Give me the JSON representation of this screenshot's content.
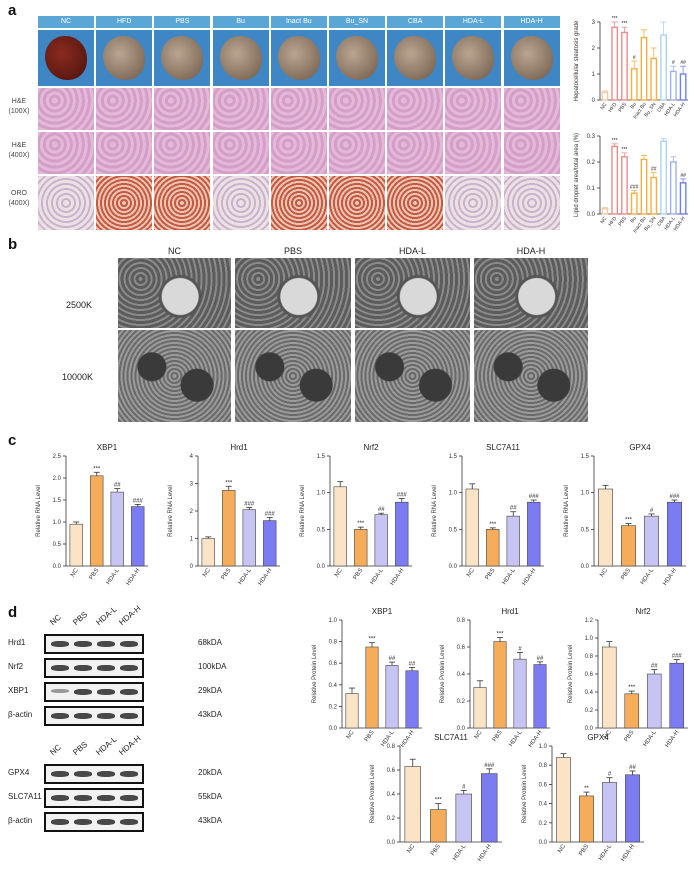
{
  "panel_letters": {
    "a": "a",
    "b": "b",
    "c": "c",
    "d": "d"
  },
  "panel_a": {
    "groups": [
      "NC",
      "HFD",
      "PBS",
      "Bu",
      "Inact Bu",
      "Bu_SN",
      "CBA",
      "HDA-L",
      "HDA-H"
    ],
    "row_labels": {
      "he100_1": "H&E",
      "he100_2": "(100X)",
      "he400_1": "H&E",
      "he400_2": "(400X)",
      "oro_1": "ORO",
      "oro_2": "(400X)"
    },
    "colors": {
      "header": "#5aa7d6",
      "he": "#d9a6cc",
      "oro": "#e8c9b8"
    }
  },
  "panel_b": {
    "columns": [
      "NC",
      "PBS",
      "HDA-L",
      "HDA-H"
    ],
    "rows": [
      "2500K",
      "10000K"
    ]
  },
  "panel_d_blots": {
    "top_headers": [
      "NC",
      "PBS",
      "HDA-L",
      "HDA-H"
    ],
    "top_rows": [
      {
        "name": "Hrd1",
        "kda": "68kDA"
      },
      {
        "name": "Nrf2",
        "kda": "100kDA"
      },
      {
        "name": "XBP1",
        "kda": "29kDA"
      },
      {
        "name": "β-actin",
        "kda": "43kDA"
      }
    ],
    "bottom_headers": [
      "NC",
      "PBS",
      "HDA-L",
      "HDA-H"
    ],
    "bottom_rows": [
      {
        "name": "GPX4",
        "kda": "20kDA"
      },
      {
        "name": "SLC7A11",
        "kda": "55kDA"
      },
      {
        "name": "β-actin",
        "kda": "43kDA"
      }
    ]
  },
  "chart_data": [
    {
      "id": "a_steatosis",
      "type": "bar",
      "ylabel": "Hepatocellular steatosis grade",
      "categories": [
        "NC",
        "HFD",
        "PBS",
        "Bu",
        "Inact Bu",
        "Bu_SN",
        "CBA",
        "HDA-L",
        "HDA-H"
      ],
      "values": [
        0.3,
        2.8,
        2.6,
        1.2,
        2.4,
        1.6,
        2.5,
        1.1,
        1.0
      ],
      "errors": [
        0.05,
        0.2,
        0.2,
        0.3,
        0.3,
        0.4,
        0.5,
        0.2,
        0.3
      ],
      "annotations": [
        "",
        "***",
        "***",
        "#",
        "",
        "",
        "",
        "#",
        "##"
      ],
      "ylim": [
        0,
        3
      ],
      "yticks": [
        0,
        1,
        2,
        3
      ],
      "colors": [
        "#f3c7a6",
        "#f08a8a",
        "#f08a8a",
        "#f5b041",
        "#f5b041",
        "#f5b041",
        "#aad4ef",
        "#9fb0f0",
        "#6f7ff2"
      ]
    },
    {
      "id": "a_lipid",
      "type": "bar",
      "ylabel": "Lipid droplet area/total area (%)",
      "categories": [
        "NC",
        "HFD",
        "PBS",
        "Bu",
        "Inact Bu",
        "Bu_SN",
        "CBA",
        "HDA-L",
        "HDA-H"
      ],
      "values": [
        0.02,
        0.26,
        0.22,
        0.08,
        0.21,
        0.14,
        0.28,
        0.2,
        0.12
      ],
      "errors": [
        0.005,
        0.01,
        0.015,
        0.01,
        0.015,
        0.02,
        0.01,
        0.02,
        0.015
      ],
      "annotations": [
        "",
        "***",
        "***",
        "###",
        "",
        "##",
        "",
        "",
        "##"
      ],
      "ylim": [
        0,
        0.3
      ],
      "yticks": [
        0.0,
        0.1,
        0.2,
        0.3
      ],
      "colors": [
        "#f3c7a6",
        "#f08a8a",
        "#f08a8a",
        "#f5b041",
        "#f5b041",
        "#f5b041",
        "#aad4ef",
        "#9fb0f0",
        "#6f7ff2"
      ]
    },
    {
      "id": "c_xbp1",
      "type": "bar",
      "title": "XBP1",
      "ylabel": "Relative RNA Level",
      "categories": [
        "NC",
        "PBS",
        "HDA-L",
        "HDA-H"
      ],
      "values": [
        0.95,
        2.05,
        1.68,
        1.35
      ],
      "errors": [
        0.05,
        0.08,
        0.08,
        0.05
      ],
      "annotations": [
        "",
        "***",
        "##",
        "###"
      ],
      "ylim": [
        0,
        2.5
      ],
      "yticks": [
        0.0,
        0.5,
        1.0,
        1.5,
        2.0,
        2.5
      ]
    },
    {
      "id": "c_hrd1",
      "type": "bar",
      "title": "Hrd1",
      "ylabel": "Relative RNA Level",
      "categories": [
        "NC",
        "PBS",
        "HDA-L",
        "HDA-H"
      ],
      "values": [
        1.0,
        2.75,
        2.05,
        1.65
      ],
      "errors": [
        0.06,
        0.15,
        0.08,
        0.12
      ],
      "annotations": [
        "",
        "***",
        "###",
        "###"
      ],
      "ylim": [
        0,
        4
      ],
      "yticks": [
        0,
        1,
        2,
        3,
        4
      ]
    },
    {
      "id": "c_nrf2",
      "type": "bar",
      "title": "Nrf2",
      "ylabel": "Relative RNA Level",
      "categories": [
        "NC",
        "PBS",
        "HDA-L",
        "HDA-H"
      ],
      "values": [
        1.08,
        0.5,
        0.7,
        0.87
      ],
      "errors": [
        0.07,
        0.03,
        0.02,
        0.05
      ],
      "annotations": [
        "",
        "***",
        "##",
        "###"
      ],
      "ylim": [
        0,
        1.5
      ],
      "yticks": [
        0.0,
        0.5,
        1.0,
        1.5
      ]
    },
    {
      "id": "c_slc7a11",
      "type": "bar",
      "title": "SLC7A11",
      "ylabel": "Relative RNA Level",
      "categories": [
        "NC",
        "PBS",
        "HDA-L",
        "HDA-H"
      ],
      "values": [
        1.05,
        0.5,
        0.68,
        0.87
      ],
      "errors": [
        0.07,
        0.02,
        0.06,
        0.03
      ],
      "annotations": [
        "",
        "***",
        "##",
        "###"
      ],
      "ylim": [
        0,
        1.5
      ],
      "yticks": [
        0.0,
        0.5,
        1.0,
        1.5
      ]
    },
    {
      "id": "c_gpx4",
      "type": "bar",
      "title": "GPX4",
      "ylabel": "Relative RNA Level",
      "categories": [
        "NC",
        "PBS",
        "HDA-L",
        "HDA-H"
      ],
      "values": [
        1.05,
        0.55,
        0.68,
        0.87
      ],
      "errors": [
        0.05,
        0.03,
        0.03,
        0.03
      ],
      "annotations": [
        "",
        "***",
        "#",
        "###"
      ],
      "ylim": [
        0,
        1.5
      ],
      "yticks": [
        0.0,
        0.5,
        1.0,
        1.5
      ]
    },
    {
      "id": "d_xbp1",
      "type": "bar",
      "title": "XBP1",
      "ylabel": "Relative Protein Level",
      "categories": [
        "NC",
        "PBS",
        "HDA-L",
        "HDA-H"
      ],
      "values": [
        0.32,
        0.75,
        0.58,
        0.53
      ],
      "errors": [
        0.05,
        0.04,
        0.03,
        0.03
      ],
      "annotations": [
        "",
        "***",
        "##",
        "##"
      ],
      "ylim": [
        0,
        1.0
      ],
      "yticks": [
        0.0,
        0.2,
        0.4,
        0.6,
        0.8,
        1.0
      ]
    },
    {
      "id": "d_hrd1",
      "type": "bar",
      "title": "Hrd1",
      "ylabel": "Relative Protein Level",
      "categories": [
        "NC",
        "PBS",
        "HDA-L",
        "HDA-H"
      ],
      "values": [
        0.3,
        0.64,
        0.51,
        0.47
      ],
      "errors": [
        0.05,
        0.03,
        0.05,
        0.02
      ],
      "annotations": [
        "",
        "***",
        "#",
        "##"
      ],
      "ylim": [
        0,
        0.8
      ],
      "yticks": [
        0.0,
        0.2,
        0.4,
        0.6,
        0.8
      ]
    },
    {
      "id": "d_nrf2",
      "type": "bar",
      "title": "Nrf2",
      "ylabel": "Relative Protein Level",
      "categories": [
        "NC",
        "PBS",
        "HDA-L",
        "HDA-H"
      ],
      "values": [
        0.9,
        0.38,
        0.6,
        0.72
      ],
      "errors": [
        0.06,
        0.03,
        0.05,
        0.04
      ],
      "annotations": [
        "",
        "***",
        "##",
        "###"
      ],
      "ylim": [
        0,
        1.2
      ],
      "yticks": [
        0.0,
        0.2,
        0.4,
        0.6,
        0.8,
        1.0,
        1.2
      ]
    },
    {
      "id": "d_slc7a11",
      "type": "bar",
      "title": "SLC7A11",
      "ylabel": "Relative Protein Level",
      "categories": [
        "NC",
        "PBS",
        "HDA-L",
        "HDA-H"
      ],
      "values": [
        0.63,
        0.27,
        0.4,
        0.57
      ],
      "errors": [
        0.06,
        0.05,
        0.03,
        0.04
      ],
      "annotations": [
        "",
        "***",
        "#",
        "###"
      ],
      "ylim": [
        0,
        0.8
      ],
      "yticks": [
        0.0,
        0.2,
        0.4,
        0.6,
        0.8
      ]
    },
    {
      "id": "d_gpx4",
      "type": "bar",
      "title": "GPX4",
      "ylabel": "Relative Protein Level",
      "categories": [
        "NC",
        "PBS",
        "HDA-L",
        "HDA-H"
      ],
      "values": [
        0.88,
        0.48,
        0.62,
        0.7
      ],
      "errors": [
        0.04,
        0.04,
        0.05,
        0.04
      ],
      "annotations": [
        "",
        "**",
        "#",
        "##"
      ],
      "ylim": [
        0,
        1.0
      ],
      "yticks": [
        0.0,
        0.2,
        0.4,
        0.6,
        0.8,
        1.0
      ]
    }
  ]
}
